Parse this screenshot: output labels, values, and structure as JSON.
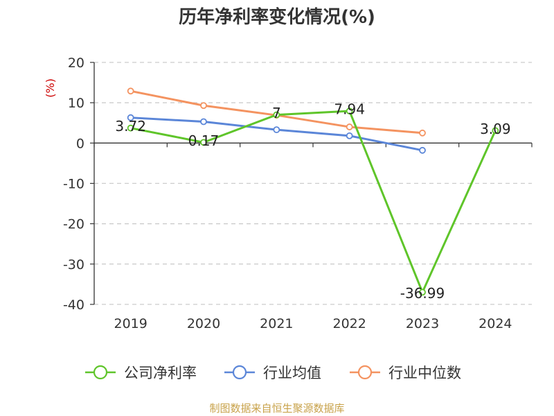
{
  "title": "历年净利率变化情况(%)",
  "source": "制图数据来自恒生聚源数据库",
  "chart_data": {
    "type": "line",
    "title": "历年净利率变化情况(%)",
    "ylabel": "(%)",
    "categories": [
      "2019",
      "2020",
      "2021",
      "2022",
      "2023",
      "2024"
    ],
    "ylim": [
      -40,
      20
    ],
    "yticks": [
      "20",
      "10",
      "0",
      "-10",
      "-20",
      "-30",
      "-40"
    ],
    "grid": true,
    "legend_position": "bottom",
    "series": [
      {
        "name": "公司净利率",
        "color": "#5fc52a",
        "values": [
          3.72,
          0.17,
          7,
          7.94,
          -36.99,
          3.09
        ],
        "labels": [
          "3.72",
          "0.17",
          "7",
          "7.94",
          "-36.99",
          "3.09"
        ]
      },
      {
        "name": "行业均值",
        "color": "#5b86d8",
        "values": [
          6.3,
          5.3,
          3.3,
          1.8,
          -1.8,
          null
        ]
      },
      {
        "name": "行业中位数",
        "color": "#f49360",
        "values": [
          12.9,
          9.3,
          6.9,
          4.0,
          2.5,
          null
        ]
      }
    ]
  }
}
